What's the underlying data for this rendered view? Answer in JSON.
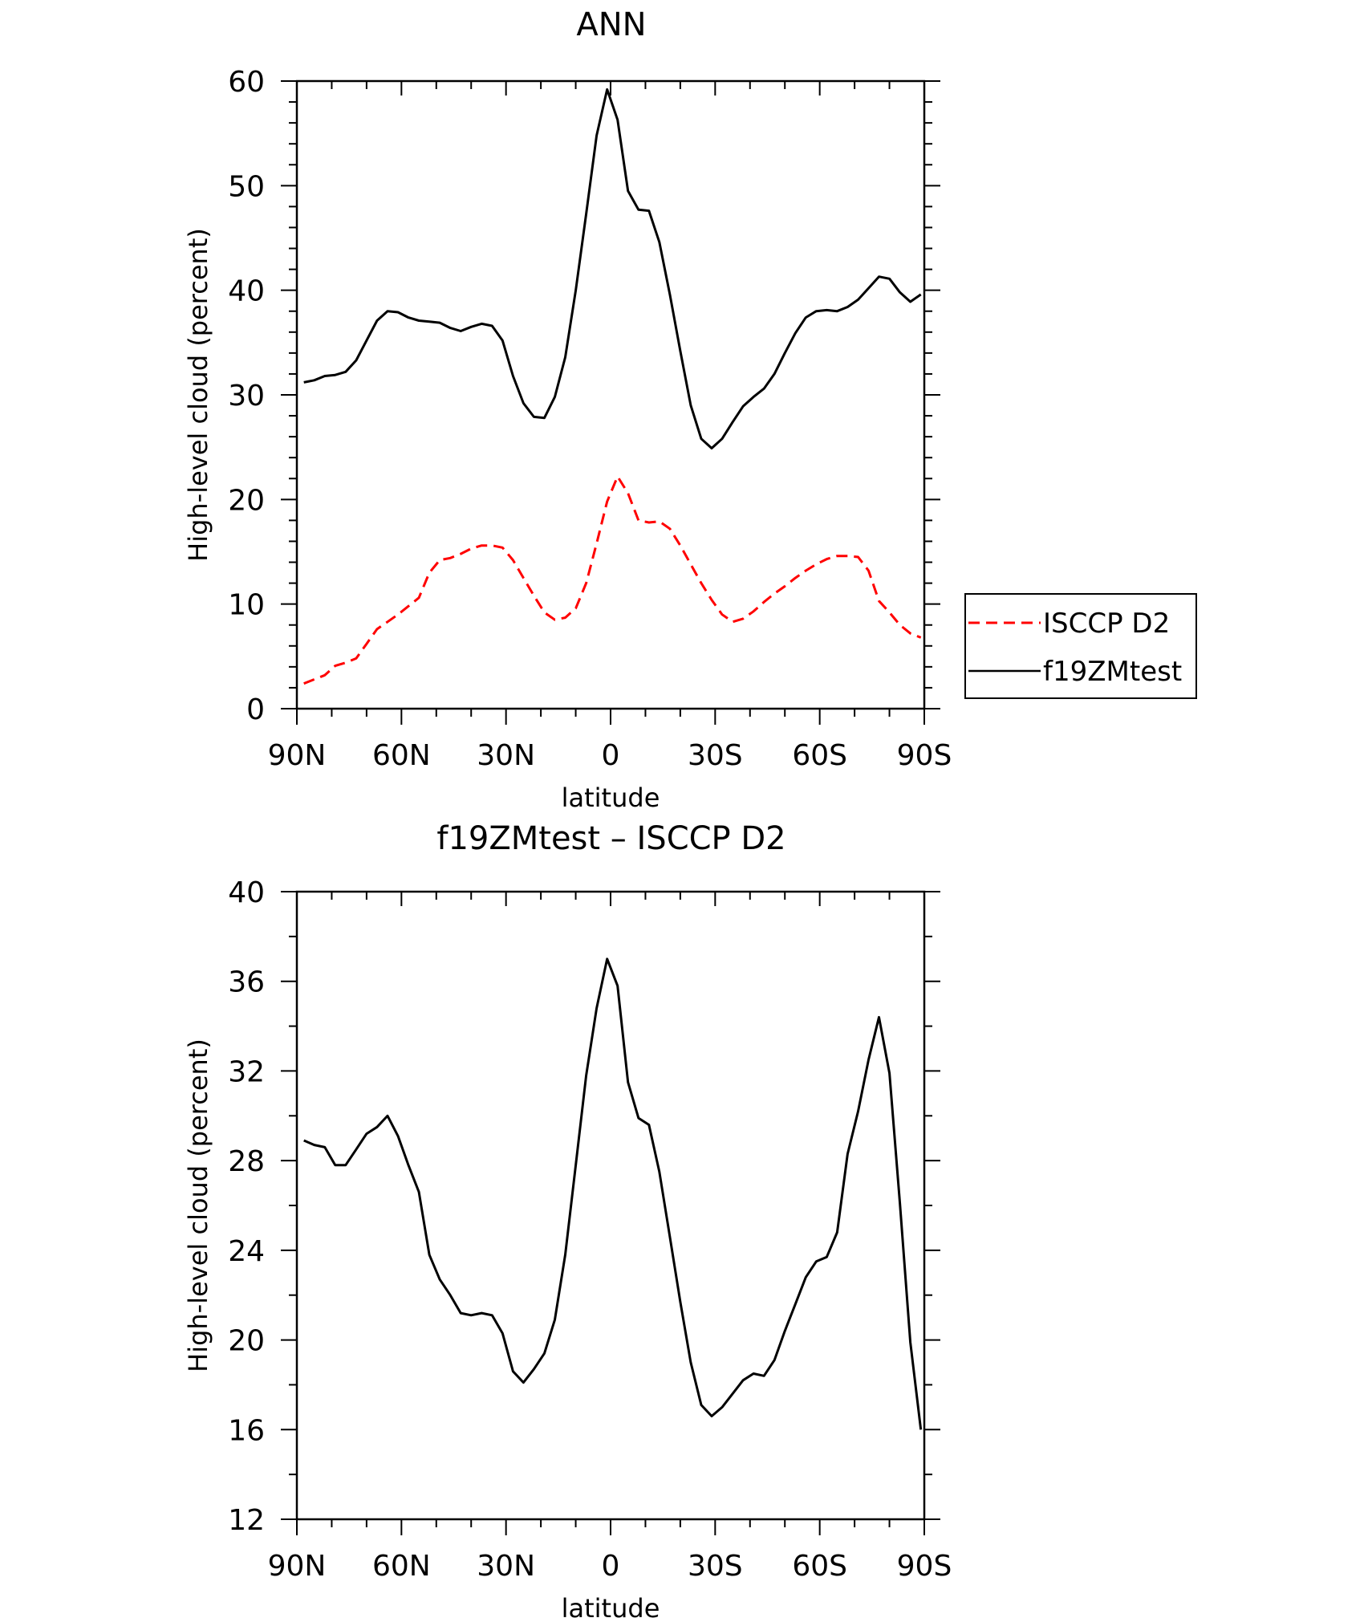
{
  "chart_data": [
    {
      "type": "line",
      "title": "ANN",
      "xlabel": "latitude",
      "ylabel": "High-level cloud (percent)",
      "xlim": [
        -90,
        90
      ],
      "ylim": [
        0,
        60
      ],
      "x_ticks": [
        -90,
        -60,
        -30,
        0,
        30,
        60,
        90
      ],
      "x_tick_labels": [
        "90N",
        "60N",
        "30N",
        "0",
        "30S",
        "60S",
        "90S"
      ],
      "y_ticks": [
        0,
        10,
        20,
        30,
        40,
        50,
        60
      ],
      "y_tick_labels": [
        "0",
        "10",
        "20",
        "30",
        "40",
        "50",
        "60"
      ],
      "legend_position": "right",
      "series": [
        {
          "name": "ISCCP D2",
          "color": "#ff0000",
          "dash": "dashed",
          "x": [
            -88,
            -85,
            -82,
            -79,
            -76,
            -73,
            -70,
            -67,
            -64,
            -61,
            -58,
            -55,
            -52,
            -49,
            -46,
            -43,
            -40,
            -37,
            -34,
            -31,
            -28,
            -25,
            -22,
            -19,
            -16,
            -13,
            -10,
            -7,
            -4,
            -1,
            2,
            5,
            8,
            11,
            14,
            17,
            20,
            23,
            26,
            29,
            32,
            35,
            38,
            41,
            44,
            47,
            50,
            53,
            56,
            59,
            62,
            65,
            68,
            71,
            74,
            77,
            80,
            83,
            86,
            89
          ],
          "values": [
            2.4,
            2.8,
            3.2,
            4.1,
            4.4,
            4.8,
            6.2,
            7.6,
            8.3,
            9.0,
            9.8,
            10.6,
            13.0,
            14.2,
            14.4,
            14.8,
            15.3,
            15.6,
            15.6,
            15.4,
            14.2,
            12.5,
            10.8,
            9.2,
            8.5,
            8.7,
            9.6,
            12.0,
            15.8,
            19.8,
            22.2,
            20.6,
            18.0,
            17.8,
            17.9,
            17.2,
            15.6,
            13.8,
            12.0,
            10.4,
            9.0,
            8.3,
            8.6,
            9.3,
            10.2,
            11.0,
            11.7,
            12.5,
            13.2,
            13.8,
            14.3,
            14.6,
            14.6,
            14.5,
            13.2,
            10.3,
            9.2,
            8.0,
            7.2,
            6.8
          ]
        },
        {
          "name": "f19ZMtest",
          "color": "#000000",
          "dash": "solid",
          "x": [
            -88,
            -85,
            -82,
            -79,
            -76,
            -73,
            -70,
            -67,
            -64,
            -61,
            -58,
            -55,
            -52,
            -49,
            -46,
            -43,
            -40,
            -37,
            -34,
            -31,
            -28,
            -25,
            -22,
            -19,
            -16,
            -13,
            -10,
            -7,
            -4,
            -1,
            2,
            5,
            8,
            11,
            14,
            17,
            20,
            23,
            26,
            29,
            32,
            35,
            38,
            41,
            44,
            47,
            50,
            53,
            56,
            59,
            62,
            65,
            68,
            71,
            74,
            77,
            80,
            83,
            86,
            89
          ],
          "values": [
            31.2,
            31.4,
            31.8,
            31.9,
            32.2,
            33.3,
            35.2,
            37.1,
            38.0,
            37.9,
            37.4,
            37.1,
            37.0,
            36.9,
            36.4,
            36.1,
            36.5,
            36.8,
            36.6,
            35.2,
            31.8,
            29.2,
            27.9,
            27.8,
            29.8,
            33.6,
            40.0,
            47.3,
            54.8,
            59.2,
            56.3,
            49.5,
            47.7,
            47.6,
            44.6,
            39.6,
            34.2,
            29.0,
            25.8,
            24.9,
            25.8,
            27.4,
            28.9,
            29.8,
            30.6,
            32.0,
            34.0,
            35.9,
            37.4,
            38.0,
            38.1,
            38.0,
            38.4,
            39.1,
            40.2,
            41.3,
            41.1,
            39.8,
            38.9,
            39.6
          ]
        }
      ]
    },
    {
      "type": "line",
      "title": "f19ZMtest – ISCCP D2",
      "xlabel": "latitude",
      "ylabel": "High-level cloud (percent)",
      "xlim": [
        -90,
        90
      ],
      "ylim": [
        12,
        40
      ],
      "x_ticks": [
        -90,
        -60,
        -30,
        0,
        30,
        60,
        90
      ],
      "x_tick_labels": [
        "90N",
        "60N",
        "30N",
        "0",
        "30S",
        "60S",
        "90S"
      ],
      "y_ticks": [
        12,
        16,
        20,
        24,
        28,
        32,
        36,
        40
      ],
      "y_tick_labels": [
        "12",
        "16",
        "20",
        "24",
        "28",
        "32",
        "36",
        "40"
      ],
      "series": [
        {
          "color": "#000000",
          "dash": "solid",
          "x": [
            -88,
            -85,
            -82,
            -79,
            -76,
            -73,
            -70,
            -67,
            -64,
            -61,
            -58,
            -55,
            -52,
            -49,
            -46,
            -43,
            -40,
            -37,
            -34,
            -31,
            -28,
            -25,
            -22,
            -19,
            -16,
            -13,
            -10,
            -7,
            -4,
            -1,
            2,
            5,
            8,
            11,
            14,
            17,
            20,
            23,
            26,
            29,
            32,
            35,
            38,
            41,
            44,
            47,
            50,
            53,
            56,
            59,
            62,
            65,
            68,
            71,
            74,
            77,
            80,
            83,
            86,
            89
          ],
          "values": [
            28.9,
            28.7,
            28.6,
            27.8,
            27.8,
            28.5,
            29.2,
            29.5,
            30.0,
            29.1,
            27.8,
            26.6,
            23.8,
            22.7,
            22.0,
            21.2,
            21.1,
            21.2,
            21.1,
            20.3,
            18.6,
            18.1,
            18.7,
            19.4,
            20.9,
            23.8,
            27.8,
            31.8,
            34.8,
            37.0,
            35.8,
            31.5,
            29.9,
            29.6,
            27.5,
            24.6,
            21.7,
            19.0,
            17.1,
            16.6,
            17.0,
            17.6,
            18.2,
            18.5,
            18.4,
            19.1,
            20.4,
            21.6,
            22.8,
            23.5,
            23.7,
            24.8,
            28.3,
            30.2,
            32.5,
            34.4,
            31.9,
            26.1,
            19.9,
            16.0
          ]
        }
      ]
    }
  ]
}
